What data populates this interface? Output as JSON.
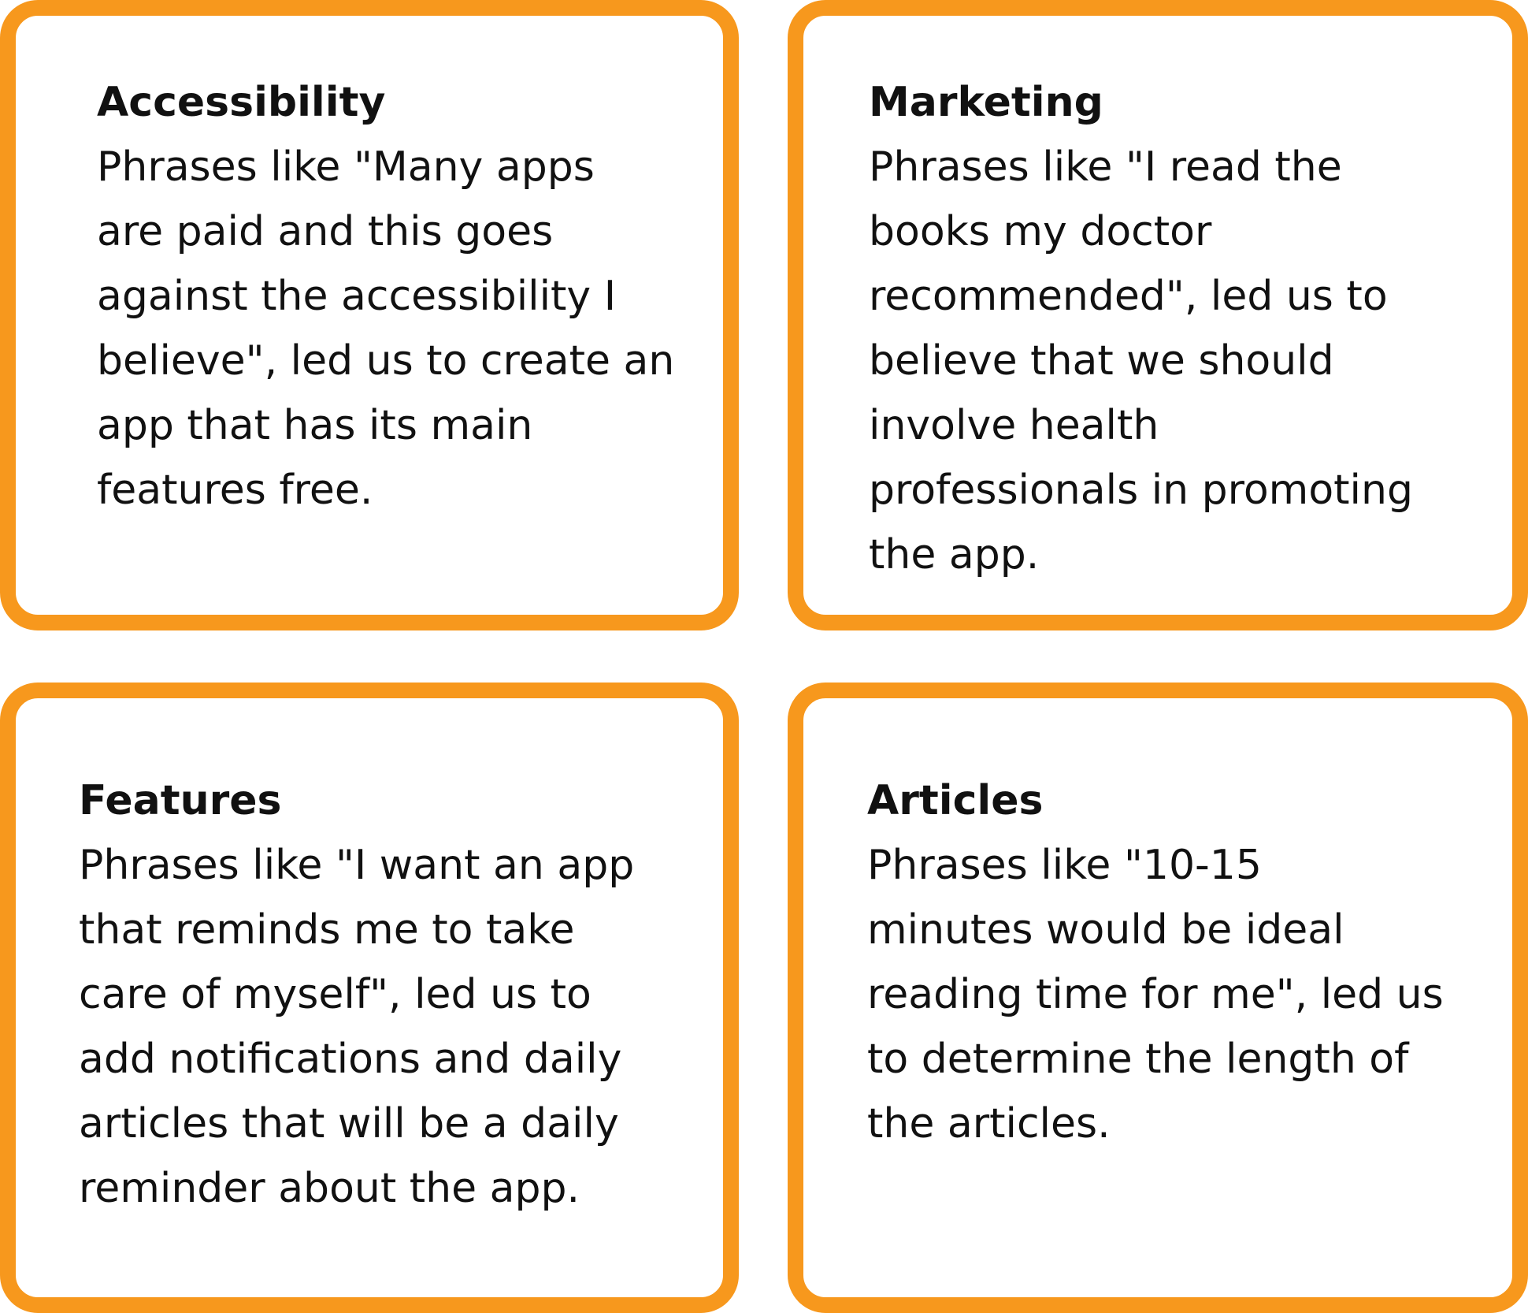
{
  "cards": [
    {
      "title": "Accessibility",
      "lines": [
        "Phrases like \"Many apps",
        "are paid and this goes",
        "against the accessibility I",
        "believe\", led us to create an",
        "app that has its main",
        "features free."
      ]
    },
    {
      "title": "Marketing",
      "lines": [
        "Phrases like \"I read the",
        "books my doctor",
        "recommended\", led us to",
        "believe that we should",
        "involve health",
        "professionals in promoting",
        "the app."
      ]
    },
    {
      "title": "Features",
      "lines": [
        "Phrases like \"I want an app",
        "that reminds me to take",
        "care of myself\", led us to",
        "add notifications and daily",
        "articles that will be a daily",
        "reminder about the app."
      ]
    },
    {
      "title": "Articles",
      "lines": [
        "Phrases like \"10-15",
        "minutes would be ideal",
        "reading time for me\", led us",
        "to determine the length of",
        "the articles."
      ]
    }
  ],
  "colors": {
    "border": "#F7981D",
    "text": "#111111",
    "background": "#FFFFFF"
  }
}
